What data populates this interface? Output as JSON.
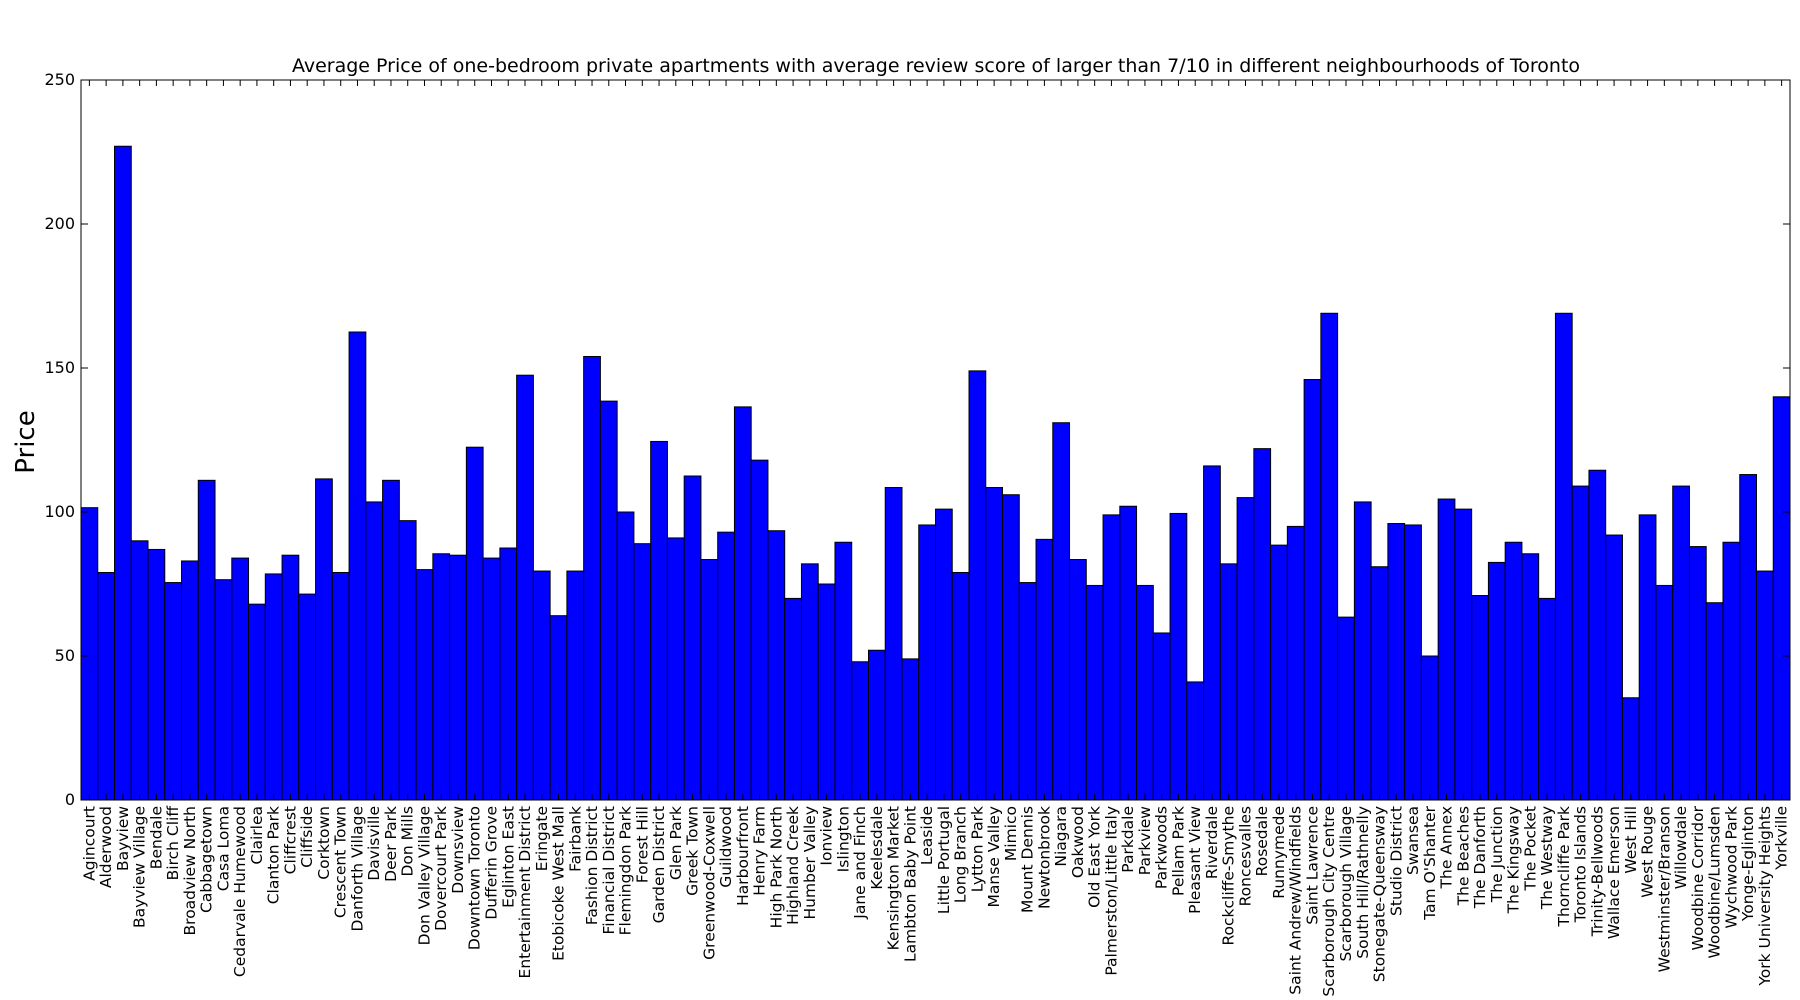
{
  "chart_data": {
    "type": "bar",
    "title": "Average Price of one-bedroom private apartments with average review score of larger than 7/10  in different neighbourhoods of Toronto",
    "xlabel": "",
    "ylabel": "Price",
    "ylim": [
      0,
      250
    ],
    "yticks": [
      0,
      50,
      100,
      150,
      200,
      250
    ],
    "grid": false,
    "bar_color": "#0000ff",
    "edge_color": "#000000",
    "categories": [
      "Agincourt",
      "Alderwood",
      "Bayview",
      "Bayview Village",
      "Bendale",
      "Birch Cliff",
      "Broadview North",
      "Cabbagetown",
      "Casa Loma",
      "Cedarvale Humewood",
      "Clairlea",
      "Clanton Park",
      "Cliffcrest",
      "Cliffside",
      "Corktown",
      "Crescent Town",
      "Danforth Village",
      "Davisville",
      "Deer Park",
      "Don Mills",
      "Don Valley Village",
      "Dovercourt Park",
      "Downsview",
      "Downtown Toronto",
      "Dufferin Grove",
      "Eglinton East",
      "Entertainment District",
      "Eringate",
      "Etobicoke West Mall",
      "Fairbank",
      "Fashion District",
      "Financial District",
      "Flemingdon Park",
      "Forest Hill",
      "Garden District",
      "Glen Park",
      "Greek Town",
      "Greenwood-Coxwell",
      "Guildwood",
      "Harbourfront",
      "Henry Farm",
      "High Park North",
      "Highland Creek",
      "Humber Valley",
      "Ionview",
      "Islington",
      "Jane and Finch",
      "Keelesdale",
      "Kensington Market",
      "Lambton Baby Point",
      "Leaside",
      "Little Portugal",
      "Long Branch",
      "Lytton Park",
      "Manse Valley",
      "Mimico",
      "Mount Dennis",
      "Newtonbrook",
      "Niagara",
      "Oakwood",
      "Old East York",
      "Palmerston/Little Italy",
      "Parkdale",
      "Parkview",
      "Parkwoods",
      "Pellam Park",
      "Pleasant View",
      "Riverdale",
      "Rockcliffe-Smythe",
      "Roncesvalles",
      "Rosedale",
      "Runnymede",
      "Saint Andrew/Windfields",
      "Saint Lawrence",
      "Scarborough City Centre",
      "Scarborough Village",
      "South Hill/Rathnelly",
      "Stonegate-Queensway",
      "Studio District",
      "Swansea",
      "Tam O'Shanter",
      "The Annex",
      "The Beaches",
      "The Danforth",
      "The Junction",
      "The Kingsway",
      "The Pocket",
      "The Westway",
      "Thorncliffe Park",
      "Toronto Islands",
      "Trinity-Bellwoods",
      "Wallace Emerson",
      "West Hill",
      "West Rouge",
      "Westminster/Branson",
      "Willowdale",
      "Woodbine Corridor",
      "Woodbine/Lumsden",
      "Wychwood Park",
      "Yonge-Eglinton",
      "York University Heights",
      "Yorkville"
    ],
    "values": [
      101.5,
      79,
      227,
      90,
      87,
      75.5,
      83,
      111,
      76.5,
      84,
      68,
      78.5,
      85,
      71.5,
      111.5,
      79,
      162.5,
      103.5,
      111,
      97,
      80,
      85.5,
      85,
      122.5,
      84,
      87.5,
      147.5,
      79.5,
      64,
      79.5,
      154,
      138.5,
      100,
      89,
      124.5,
      91,
      112.5,
      83.5,
      93,
      136.5,
      118,
      93.5,
      70,
      82,
      75,
      89.5,
      48,
      52,
      108.5,
      49,
      95.5,
      101,
      79,
      149,
      108.5,
      106,
      75.5,
      90.5,
      131,
      83.5,
      74.5,
      99,
      102,
      74.5,
      58,
      99.5,
      41,
      116,
      82,
      105,
      122,
      88.5,
      95,
      146,
      169,
      63.5,
      103.5,
      81,
      96,
      95.5,
      50,
      104.5,
      101,
      71,
      82.5,
      89.5,
      85.5,
      70,
      169,
      109,
      114.5,
      92,
      35.5,
      99,
      74.5,
      109,
      88,
      68.5,
      89.5,
      113,
      79.5,
      140
    ]
  }
}
